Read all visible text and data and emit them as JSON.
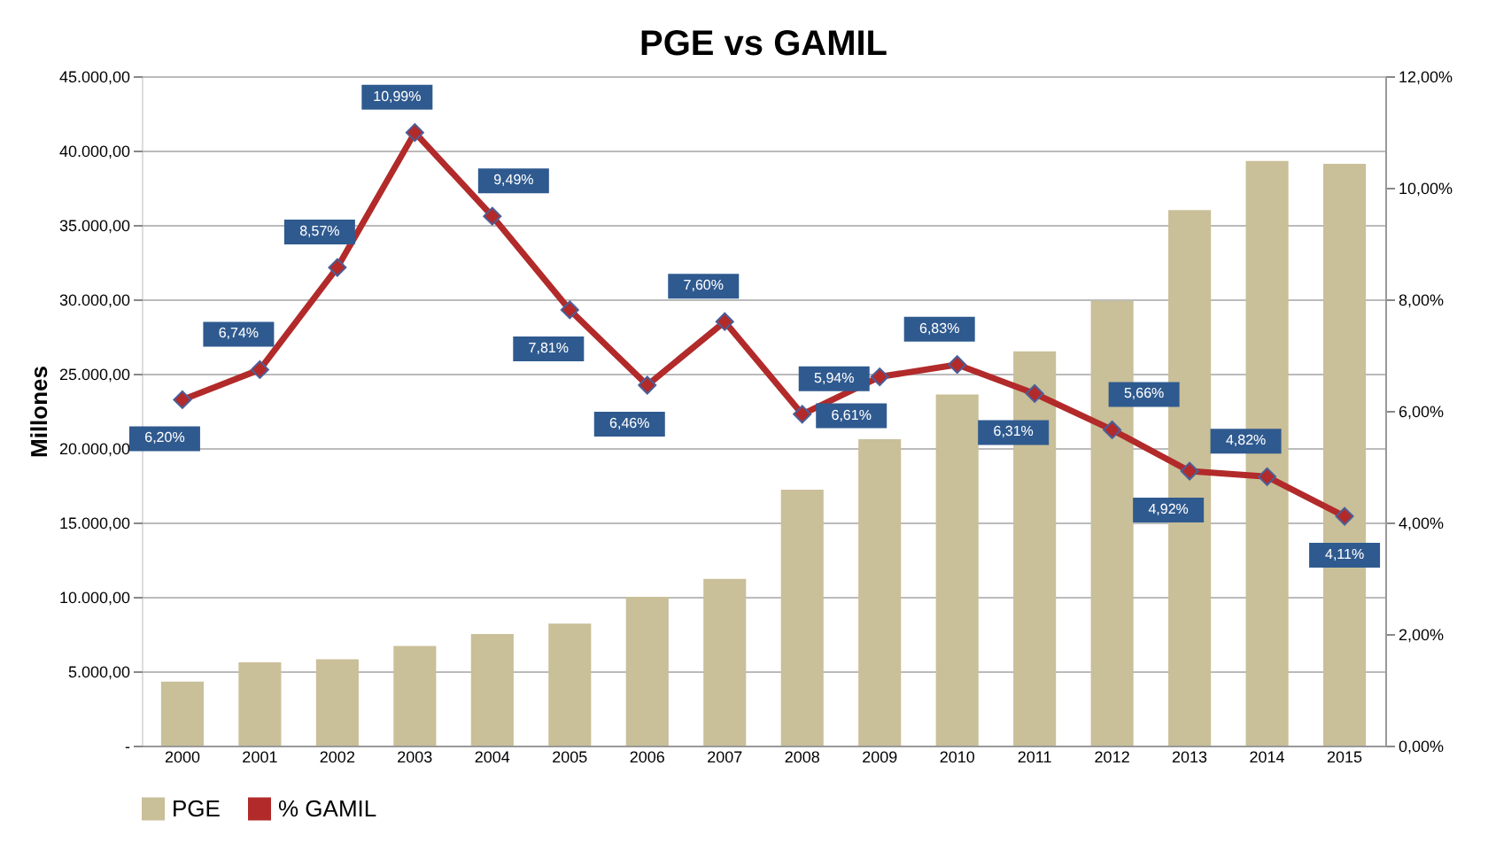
{
  "chart_data": {
    "type": "bar",
    "title": "PGE vs GAMIL",
    "ylabel": "Millones",
    "categories": [
      "2000",
      "2001",
      "2002",
      "2003",
      "2004",
      "2005",
      "2006",
      "2007",
      "2008",
      "2009",
      "2010",
      "2011",
      "2012",
      "2013",
      "2014",
      "2015"
    ],
    "series": [
      {
        "name": "PGE",
        "color": "#c9bf98",
        "values": [
          4300,
          5600,
          5800,
          6700,
          7500,
          8200,
          10000,
          11200,
          17200,
          20600,
          23600,
          26500,
          29900,
          36000,
          39300,
          39100
        ]
      },
      {
        "name": "% GAMIL",
        "type": "line",
        "axis": "y2",
        "color": "#b22a2a",
        "marker": "diamond",
        "values": [
          6.2,
          6.74,
          8.57,
          10.99,
          9.49,
          7.81,
          6.46,
          7.6,
          5.94,
          6.61,
          6.83,
          6.31,
          5.66,
          4.92,
          4.82,
          4.11
        ],
        "value_labels": [
          "6,20%",
          "6,74%",
          "8,57%",
          "10,99%",
          "9,49%",
          "7,81%",
          "6,46%",
          "7,60%",
          "5,94%",
          "6,61%",
          "6,83%",
          "6,31%",
          "5,66%",
          "4,92%",
          "4,82%",
          "4,11%"
        ]
      }
    ],
    "ylim": [
      0,
      45000
    ],
    "yticks": [
      {
        "value": 0,
        "label": "-"
      },
      {
        "value": 5000,
        "label": "5.000,00"
      },
      {
        "value": 10000,
        "label": "10.000,00"
      },
      {
        "value": 15000,
        "label": "15.000,00"
      },
      {
        "value": 20000,
        "label": "20.000,00"
      },
      {
        "value": 25000,
        "label": "25.000,00"
      },
      {
        "value": 30000,
        "label": "30.000,00"
      },
      {
        "value": 35000,
        "label": "35.000,00"
      },
      {
        "value": 40000,
        "label": "40.000,00"
      },
      {
        "value": 45000,
        "label": "45.000,00"
      }
    ],
    "y2lim": [
      0,
      12
    ],
    "y2ticks": [
      {
        "value": 0,
        "label": "0,00%"
      },
      {
        "value": 2,
        "label": "2,00%"
      },
      {
        "value": 4,
        "label": "4,00%"
      },
      {
        "value": 6,
        "label": "6,00%"
      },
      {
        "value": 8,
        "label": "8,00%"
      },
      {
        "value": 10,
        "label": "10,00%"
      },
      {
        "value": 12,
        "label": "12,00%"
      }
    ],
    "grid": "y",
    "legend": "bottom"
  }
}
